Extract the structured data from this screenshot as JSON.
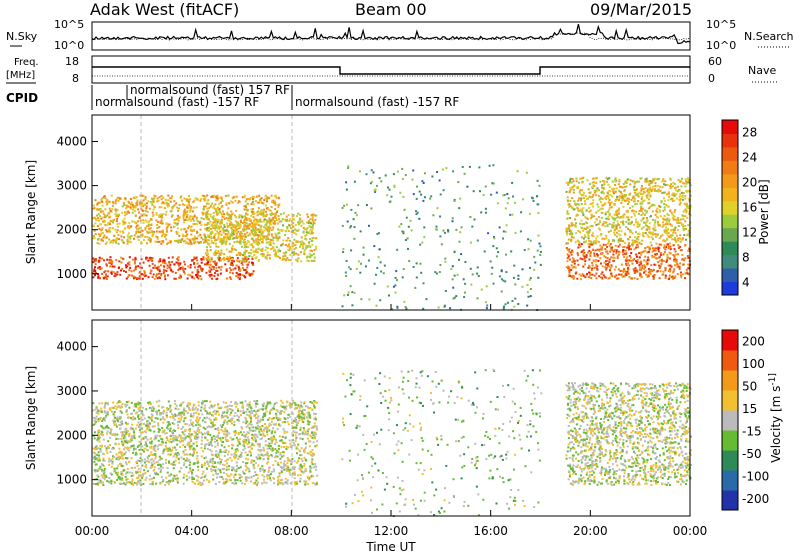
{
  "header": {
    "station": "Adak West (fitACF)",
    "beam": "Beam 00",
    "date": "09/Mar/2015"
  },
  "panels": {
    "nsky_label": "N.Sky",
    "nsearch_label": "N.Search",
    "freq_label_1": "Freq.",
    "freq_label_2": "[MHz]",
    "nave_label": "Nave",
    "cpid_label": "CPID",
    "nsky_ticks": [
      "10^5",
      "10^0"
    ],
    "nsearch_ticks": [
      "10^5",
      "10^0"
    ],
    "freq_ticks": [
      "18",
      "8"
    ],
    "nave_ticks": [
      "60",
      "0"
    ],
    "cpid_segments": [
      {
        "label": "normalsound (fast) -157 RF",
        "start_hour": 0
      },
      {
        "label": "normalsound (fast) 157 RF",
        "start_hour": 1.4
      },
      {
        "label": "normalsound (fast) -157 RF",
        "start_hour": 8
      }
    ]
  },
  "colors": {
    "power": [
      "#1e3cdc",
      "#2f5fa8",
      "#3f8c7c",
      "#2e8b57",
      "#6aa84f",
      "#9ccb3c",
      "#e0d02a",
      "#f2b21c",
      "#f39a1a",
      "#f07c14",
      "#ec5a10",
      "#e8320c",
      "#e60a0a"
    ],
    "velocity": [
      "#2233aa",
      "#2a6aa8",
      "#2e8b57",
      "#66bb33",
      "#bbbbbb",
      "#f2c030",
      "#f39a1a",
      "#f05a10",
      "#e60a0a"
    ]
  },
  "chart_data": [
    {
      "type": "heatmap",
      "title": "",
      "xlabel": "Time UT",
      "ylabel": "Slant Range [km]",
      "xlim": [
        0,
        24
      ],
      "ylim": [
        180,
        4600
      ],
      "x_ticks": [
        "00:00",
        "04:00",
        "08:00",
        "12:00",
        "16:00",
        "20:00",
        "00:00"
      ],
      "y_ticks": [
        "1000",
        "2000",
        "3000",
        "4000"
      ],
      "colorbar": {
        "label": "Power [dB]",
        "ticks": [
          "4",
          "8",
          "12",
          "16",
          "20",
          "24",
          "28"
        ],
        "range": [
          0,
          30
        ]
      },
      "regions": [
        {
          "start_hour": 0,
          "end_hour": 6.5,
          "range_km": [
            900,
            1400
          ],
          "value_db": 26
        },
        {
          "start_hour": 0,
          "end_hour": 7.5,
          "range_km": [
            1700,
            2800
          ],
          "value_db": 18
        },
        {
          "start_hour": 4.5,
          "end_hour": 9,
          "range_km": [
            1300,
            2400
          ],
          "value_db": 16
        },
        {
          "start_hour": 10,
          "end_hour": 18,
          "range_km": [
            200,
            3500
          ],
          "value_db": 8
        },
        {
          "start_hour": 19,
          "end_hour": 24,
          "range_km": [
            900,
            1700
          ],
          "value_db": 24
        },
        {
          "start_hour": 19,
          "end_hour": 24,
          "range_km": [
            1700,
            3200
          ],
          "value_db": 16
        }
      ]
    },
    {
      "type": "heatmap",
      "title": "",
      "xlabel": "Time UT",
      "ylabel": "Slant Range [km]",
      "xlim": [
        0,
        24
      ],
      "ylim": [
        180,
        4600
      ],
      "x_ticks": [
        "00:00",
        "04:00",
        "08:00",
        "12:00",
        "16:00",
        "20:00",
        "00:00"
      ],
      "y_ticks": [
        "1000",
        "2000",
        "3000",
        "4000"
      ],
      "colorbar": {
        "label": "Velocity [m s^-1]",
        "ticks": [
          "200",
          "100",
          "50",
          "15",
          "-15",
          "-50",
          "-100",
          "-200"
        ],
        "range": [
          -200,
          200
        ]
      },
      "regions": [
        {
          "start_hour": 0,
          "end_hour": 9,
          "range_km": [
            900,
            2800
          ],
          "value_ms": 0
        },
        {
          "start_hour": 10,
          "end_hour": 18,
          "range_km": [
            200,
            3500
          ],
          "value_ms": 30
        },
        {
          "start_hour": 19,
          "end_hour": 24,
          "range_km": [
            900,
            3200
          ],
          "value_ms": 0
        }
      ]
    }
  ]
}
